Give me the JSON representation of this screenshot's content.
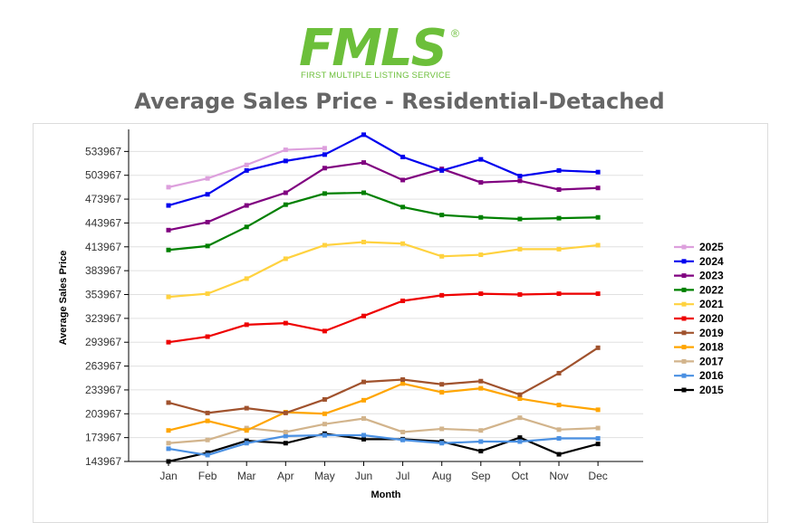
{
  "logo": {
    "text": "FMLS",
    "registered": "®",
    "tagline": "FIRST MULTIPLE LISTING SERVICE"
  },
  "page_title": "Average Sales Price - Residential-Detached",
  "chart_data": {
    "type": "line",
    "title": "Average Sales Price - Residential-Detached",
    "xlabel": "Month",
    "ylabel": "Average Sales Price",
    "categories": [
      "Jan",
      "Feb",
      "Mar",
      "Apr",
      "May",
      "Jun",
      "Jul",
      "Aug",
      "Sep",
      "Oct",
      "Nov",
      "Dec"
    ],
    "yticks": [
      143967,
      173967,
      203967,
      233967,
      263967,
      293967,
      323967,
      353967,
      383967,
      413967,
      443967,
      473967,
      503967,
      533967
    ],
    "ylim": [
      143967,
      556000
    ],
    "grid": true,
    "legend_position": "right",
    "series": [
      {
        "name": "2025",
        "color": "#dda0dd",
        "values": [
          489000,
          500000,
          517000,
          536000,
          538000,
          null,
          null,
          null,
          null,
          null,
          null,
          null
        ]
      },
      {
        "name": "2024",
        "color": "#0000ee",
        "values": [
          466000,
          480000,
          510000,
          522000,
          530000,
          555000,
          527000,
          510000,
          524000,
          503000,
          510000,
          508000
        ]
      },
      {
        "name": "2023",
        "color": "#800080",
        "values": [
          435000,
          445000,
          466000,
          482000,
          513000,
          520000,
          498000,
          512000,
          495000,
          497000,
          486000,
          488000
        ]
      },
      {
        "name": "2022",
        "color": "#008000",
        "values": [
          410000,
          415000,
          439000,
          467000,
          481000,
          482000,
          464000,
          454000,
          451000,
          449000,
          450000,
          451000
        ]
      },
      {
        "name": "2021",
        "color": "#ffd23f",
        "values": [
          351000,
          355000,
          374000,
          399000,
          416000,
          420000,
          418000,
          402000,
          404000,
          411000,
          411000,
          416000
        ]
      },
      {
        "name": "2020",
        "color": "#ee0000",
        "values": [
          294000,
          301000,
          316000,
          318000,
          308000,
          327000,
          346000,
          353000,
          355000,
          354000,
          355000,
          355000
        ]
      },
      {
        "name": "2019",
        "color": "#a0522d",
        "values": [
          218000,
          205000,
          211000,
          205000,
          222000,
          244000,
          247000,
          241000,
          245000,
          228000,
          255000,
          287000
        ]
      },
      {
        "name": "2018",
        "color": "#ffa500",
        "values": [
          183000,
          195000,
          183000,
          206000,
          204000,
          221000,
          242000,
          231000,
          236000,
          223000,
          215000,
          209000
        ]
      },
      {
        "name": "2017",
        "color": "#d2b48c",
        "values": [
          167000,
          171000,
          186000,
          181000,
          191000,
          198000,
          181000,
          185000,
          183000,
          199000,
          184000,
          186000
        ]
      },
      {
        "name": "2016",
        "color": "#4a90e2",
        "values": [
          160000,
          152000,
          167000,
          176000,
          177000,
          177000,
          171000,
          167000,
          169000,
          169000,
          173000,
          173000
        ]
      },
      {
        "name": "2015",
        "color": "#000000",
        "values": [
          144000,
          155000,
          170000,
          167000,
          179000,
          172000,
          172000,
          169000,
          157000,
          174000,
          153000,
          166000
        ]
      }
    ]
  }
}
